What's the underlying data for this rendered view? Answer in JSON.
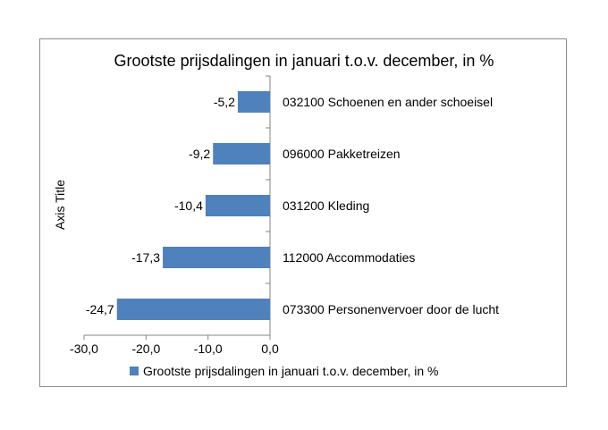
{
  "chart_data": {
    "type": "bar",
    "orientation": "horizontal",
    "title": "Grootste prijsdalingen in januari t.o.v. december, in %",
    "ylabel": "Axis Title",
    "xlabel": "",
    "xlim": [
      -30,
      0
    ],
    "x_ticks": [
      "-30,0",
      "-20,0",
      "-10,0",
      "0,0"
    ],
    "x_tick_values": [
      -30,
      -20,
      -10,
      0
    ],
    "grid": false,
    "legend_position": "bottom",
    "bar_color": "#4f81bd",
    "categories": [
      "032100 Schoenen en ander schoeisel",
      "096000 Pakketreizen",
      "031200 Kleding",
      "112000 Accommodaties",
      "073300 Personenvervoer door de lucht"
    ],
    "series": [
      {
        "name": "Grootste prijsdalingen in januari t.o.v. december, in %",
        "values": [
          -5.2,
          -9.2,
          -10.4,
          -17.3,
          -24.7
        ],
        "value_labels": [
          "-5,2",
          "-9,2",
          "-10,4",
          "-17,3",
          "-24,7"
        ]
      }
    ]
  }
}
